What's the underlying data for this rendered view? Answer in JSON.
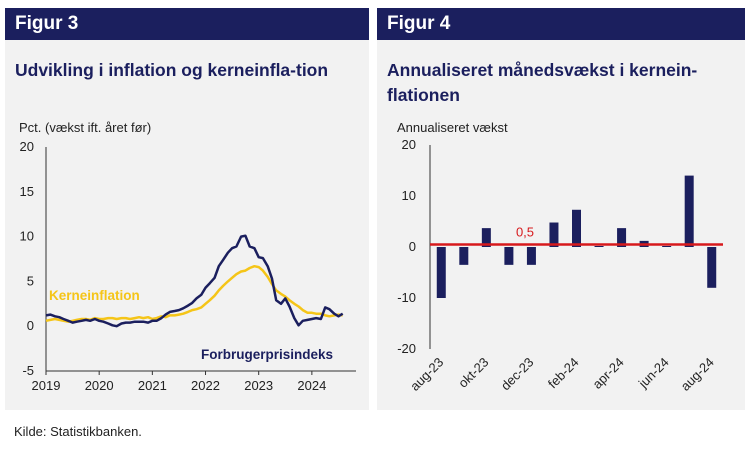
{
  "source": "Kilde: Statistikbanken.",
  "colors": {
    "navy": "#1b1f5e",
    "yellow": "#f5c518",
    "red": "#d7191c",
    "panel_bg": "#f2f2f2"
  },
  "chart_data": [
    {
      "figure_label": "Figur 3",
      "type": "line",
      "title": "Udvikling i inflation og kerneinfla-tion",
      "ylabel": "Pct. (vækst ift. året før)",
      "ylim": [
        -5,
        20
      ],
      "yticks": [
        "20",
        "15",
        "10",
        "5",
        "0",
        "-5"
      ],
      "xticks": [
        "2019",
        "2020",
        "2021",
        "2022",
        "2023",
        "2024"
      ],
      "grid": false,
      "x_start_year": 2019,
      "series": [
        {
          "name": "Forbrugerprisindeks",
          "color": "#1b1f5e",
          "x": [
            2019.0,
            2019.08,
            2019.17,
            2019.25,
            2019.33,
            2019.42,
            2019.5,
            2019.58,
            2019.67,
            2019.75,
            2019.83,
            2019.92,
            2020.0,
            2020.08,
            2020.17,
            2020.25,
            2020.33,
            2020.42,
            2020.5,
            2020.58,
            2020.67,
            2020.75,
            2020.83,
            2020.92,
            2021.0,
            2021.08,
            2021.17,
            2021.25,
            2021.33,
            2021.42,
            2021.5,
            2021.58,
            2021.67,
            2021.75,
            2021.83,
            2021.92,
            2022.0,
            2022.08,
            2022.17,
            2022.25,
            2022.33,
            2022.42,
            2022.5,
            2022.58,
            2022.67,
            2022.75,
            2022.83,
            2022.92,
            2023.0,
            2023.08,
            2023.17,
            2023.25,
            2023.33,
            2023.42,
            2023.5,
            2023.58,
            2023.67,
            2023.75,
            2023.83,
            2023.92,
            2024.0,
            2024.08,
            2024.17,
            2024.25,
            2024.33,
            2024.42,
            2024.5,
            2024.58
          ],
          "values": [
            1.2,
            1.3,
            1.1,
            1.0,
            0.8,
            0.6,
            0.4,
            0.5,
            0.6,
            0.7,
            0.6,
            0.8,
            0.6,
            0.5,
            0.3,
            0.1,
            0.0,
            0.3,
            0.4,
            0.4,
            0.5,
            0.5,
            0.5,
            0.4,
            0.6,
            0.6,
            0.9,
            1.3,
            1.6,
            1.7,
            1.8,
            2.0,
            2.3,
            2.6,
            3.1,
            3.5,
            4.3,
            4.8,
            5.4,
            6.7,
            7.4,
            8.2,
            8.7,
            8.9,
            10.0,
            10.1,
            8.9,
            8.7,
            7.7,
            7.6,
            6.7,
            5.3,
            2.9,
            2.5,
            3.1,
            2.2,
            0.9,
            0.1,
            0.6,
            0.7,
            0.8,
            0.9,
            0.8,
            2.1,
            1.9,
            1.4,
            1.1,
            1.4
          ]
        },
        {
          "name": "Kerneinflation",
          "color": "#f5c518",
          "x": [
            2019.0,
            2019.08,
            2019.17,
            2019.25,
            2019.33,
            2019.42,
            2019.5,
            2019.58,
            2019.67,
            2019.75,
            2019.83,
            2019.92,
            2020.0,
            2020.08,
            2020.17,
            2020.25,
            2020.33,
            2020.42,
            2020.5,
            2020.58,
            2020.67,
            2020.75,
            2020.83,
            2020.92,
            2021.0,
            2021.08,
            2021.17,
            2021.25,
            2021.33,
            2021.42,
            2021.5,
            2021.58,
            2021.67,
            2021.75,
            2021.83,
            2021.92,
            2022.0,
            2022.08,
            2022.17,
            2022.25,
            2022.33,
            2022.42,
            2022.5,
            2022.58,
            2022.67,
            2022.75,
            2022.83,
            2022.92,
            2023.0,
            2023.08,
            2023.17,
            2023.25,
            2023.33,
            2023.42,
            2023.5,
            2023.58,
            2023.67,
            2023.75,
            2023.83,
            2023.92,
            2024.0,
            2024.08,
            2024.17,
            2024.25,
            2024.33,
            2024.42,
            2024.5,
            2024.58
          ],
          "values": [
            0.6,
            0.7,
            0.8,
            0.7,
            0.6,
            0.5,
            0.6,
            0.7,
            0.8,
            0.8,
            0.7,
            0.9,
            0.8,
            0.8,
            0.9,
            0.9,
            0.8,
            0.9,
            0.9,
            0.8,
            0.9,
            1.0,
            0.9,
            1.0,
            0.8,
            0.9,
            1.1,
            1.0,
            1.2,
            1.2,
            1.3,
            1.4,
            1.6,
            1.8,
            1.9,
            2.1,
            2.5,
            2.9,
            3.4,
            4.0,
            4.5,
            5.0,
            5.4,
            5.8,
            6.1,
            6.2,
            6.5,
            6.7,
            6.6,
            6.2,
            5.5,
            4.7,
            4.0,
            3.6,
            3.3,
            2.9,
            2.5,
            2.2,
            1.8,
            1.5,
            1.5,
            1.4,
            1.4,
            1.2,
            1.1,
            1.2,
            1.3,
            1.2
          ]
        }
      ]
    },
    {
      "figure_label": "Figur 4",
      "type": "bar",
      "title": "Annualiseret månedsvækst i kernein-flationen",
      "ylabel": "Annualiseret vækst",
      "ylim": [
        -20,
        20
      ],
      "yticks": [
        "20",
        "10",
        "0",
        "-10",
        "-20"
      ],
      "categories": [
        "aug-23",
        "sep-23",
        "okt-23",
        "nov-23",
        "dec-23",
        "jan-24",
        "feb-24",
        "mar-24",
        "apr-24",
        "maj-24",
        "jun-24",
        "jul-24",
        "aug-24"
      ],
      "xtick_labels": [
        "aug-23",
        "",
        "okt-23",
        "",
        "dec-23",
        "",
        "feb-24",
        "",
        "apr-24",
        "",
        "jun-24",
        "",
        "aug-24"
      ],
      "values": [
        -10,
        -3.5,
        3.7,
        -3.5,
        -3.5,
        4.8,
        7.3,
        0.2,
        3.7,
        1.2,
        0.2,
        14,
        -8
      ],
      "reference_line": {
        "value": 0.5,
        "label": "0,5",
        "color": "#d7191c"
      },
      "bar_color": "#1b1f5e"
    }
  ]
}
